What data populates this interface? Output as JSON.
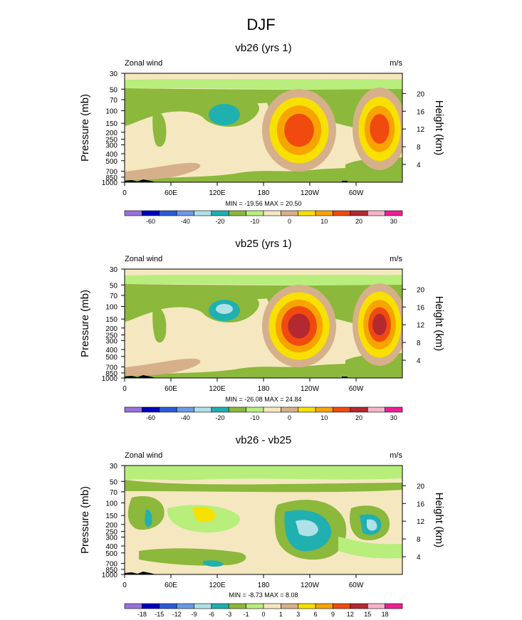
{
  "main_title": "DJF",
  "chart_data": [
    {
      "type": "heatmap",
      "title": "vb26 (yrs 1)",
      "left_label": "Zonal wind",
      "units": "m/s",
      "ylabel": "Pressure (mb)",
      "y2label": "Height (km)",
      "x_ticks": [
        "0",
        "60E",
        "120E",
        "180",
        "120W",
        "60W"
      ],
      "y_ticks": [
        "30",
        "50",
        "70",
        "100",
        "150",
        "200",
        "250",
        "300",
        "400",
        "500",
        "700",
        "850",
        "1000"
      ],
      "y2_ticks": [
        "20",
        "16",
        "12",
        "8",
        "4"
      ],
      "stats": "MIN = -19.56  MAX = 20.50",
      "colorbar_labels": [
        "-60",
        "-40",
        "-20",
        "-10",
        "0",
        "10",
        "20",
        "30"
      ],
      "colorbar_colors": [
        "#9a70dc",
        "#0000be",
        "#2a5cd8",
        "#6a9ae8",
        "#b0e0e8",
        "#20b0b0",
        "#8cb83c",
        "#b8ee7c",
        "#f5e8c0",
        "#d6b08a",
        "#f8e000",
        "#f8a400",
        "#f04a10",
        "#b42830",
        "#f8b4c8",
        "#f01e96"
      ],
      "features": [
        {
          "name": "jet-core-120W",
          "value": 20.5
        },
        {
          "name": "jet-core-60W",
          "value": 20
        },
        {
          "name": "easterly-core-120E",
          "value": -19.56
        }
      ]
    },
    {
      "type": "heatmap",
      "title": "vb25 (yrs 1)",
      "left_label": "Zonal wind",
      "units": "m/s",
      "ylabel": "Pressure (mb)",
      "y2label": "Height (km)",
      "x_ticks": [
        "0",
        "60E",
        "120E",
        "180",
        "120W",
        "60W"
      ],
      "y_ticks": [
        "30",
        "50",
        "70",
        "100",
        "150",
        "200",
        "250",
        "300",
        "400",
        "500",
        "700",
        "850",
        "1000"
      ],
      "y2_ticks": [
        "20",
        "16",
        "12",
        "8",
        "4"
      ],
      "stats": "MIN = -26.08  MAX = 24.84",
      "colorbar_labels": [
        "-60",
        "-40",
        "-20",
        "-10",
        "0",
        "10",
        "20",
        "30"
      ],
      "colorbar_colors": [
        "#9a70dc",
        "#0000be",
        "#2a5cd8",
        "#6a9ae8",
        "#b0e0e8",
        "#20b0b0",
        "#8cb83c",
        "#b8ee7c",
        "#f5e8c0",
        "#d6b08a",
        "#f8e000",
        "#f8a400",
        "#f04a10",
        "#b42830",
        "#f8b4c8",
        "#f01e96"
      ],
      "features": [
        {
          "name": "jet-core-120W",
          "value": 24.84
        },
        {
          "name": "jet-core-60W",
          "value": 22
        },
        {
          "name": "easterly-core-120E",
          "value": -26.08
        }
      ]
    },
    {
      "type": "heatmap",
      "title": "vb26 - vb25",
      "left_label": "Zonal wind",
      "units": "m/s",
      "ylabel": "Pressure (mb)",
      "y2label": "Height (km)",
      "x_ticks": [
        "0",
        "60E",
        "120E",
        "180",
        "120W",
        "60W"
      ],
      "y_ticks": [
        "30",
        "50",
        "70",
        "100",
        "150",
        "200",
        "250",
        "300",
        "400",
        "500",
        "700",
        "850",
        "1000"
      ],
      "y2_ticks": [
        "20",
        "16",
        "12",
        "8",
        "4"
      ],
      "stats": "MIN = -8.73  MAX =  8.08",
      "colorbar_labels": [
        "-18",
        "-15",
        "-12",
        "-9",
        "-6",
        "-3",
        "-1",
        "0",
        "1",
        "3",
        "6",
        "9",
        "12",
        "15",
        "18"
      ],
      "colorbar_colors": [
        "#9a70dc",
        "#0000be",
        "#2a5cd8",
        "#6a9ae8",
        "#b0e0e8",
        "#20b0b0",
        "#8cb83c",
        "#b8ee7c",
        "#f5e8c0",
        "#d6b08a",
        "#f8e000",
        "#f8a400",
        "#f04a10",
        "#b42830",
        "#f8b4c8",
        "#f01e96"
      ],
      "features": [
        {
          "name": "difference-min-120W",
          "value": -8.73
        },
        {
          "name": "difference-max",
          "value": 8.08
        }
      ]
    }
  ]
}
